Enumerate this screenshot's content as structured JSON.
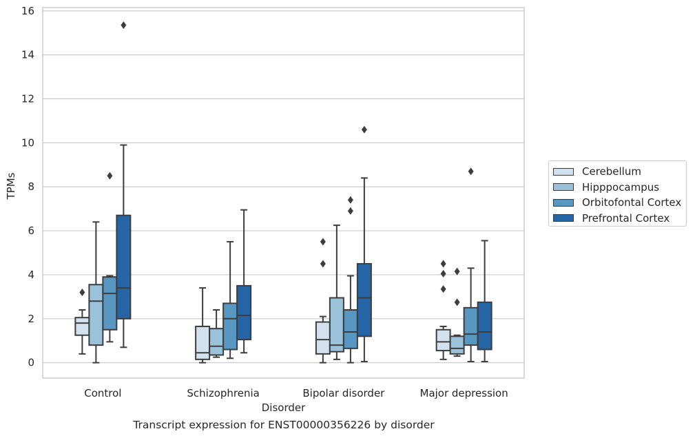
{
  "caption": "Transcript expression for ENST00000356226 by disorder",
  "chart_data": {
    "type": "box",
    "title": "",
    "xlabel": "Disorder",
    "ylabel": "TPMs",
    "ylim": [
      -0.7,
      16.15
    ],
    "yticks": [
      "0",
      "2",
      "4",
      "6",
      "8",
      "10",
      "12",
      "14",
      "16"
    ],
    "grid": "horizontal",
    "legend_position": "right",
    "categories": [
      "Control",
      "Schizophrenia",
      "Bipolar disorder",
      "Major depression"
    ],
    "series": [
      {
        "name": "Cerebellum",
        "color": "#d2e1ef",
        "boxes": [
          {
            "whislo": 0.4,
            "q1": 1.25,
            "med": 1.8,
            "q3": 2.05,
            "whishi": 2.4,
            "fliers": [
              3.2
            ]
          },
          {
            "whislo": 0.0,
            "q1": 0.15,
            "med": 0.45,
            "q3": 1.65,
            "whishi": 3.4,
            "fliers": []
          },
          {
            "whislo": 0.0,
            "q1": 0.4,
            "med": 1.05,
            "q3": 1.85,
            "whishi": 2.1,
            "fliers": [
              4.5,
              5.5
            ]
          },
          {
            "whislo": 0.15,
            "q1": 0.55,
            "med": 0.95,
            "q3": 1.5,
            "whishi": 1.65,
            "fliers": [
              3.35,
              4.05,
              4.5
            ]
          }
        ]
      },
      {
        "name": "Hipppocampus",
        "color": "#9ac2db",
        "boxes": [
          {
            "whislo": 0.0,
            "q1": 0.8,
            "med": 2.8,
            "q3": 3.55,
            "whishi": 6.4,
            "fliers": []
          },
          {
            "whislo": 0.25,
            "q1": 0.35,
            "med": 0.75,
            "q3": 1.55,
            "whishi": 2.4,
            "fliers": []
          },
          {
            "whislo": 0.15,
            "q1": 0.5,
            "med": 0.8,
            "q3": 2.95,
            "whishi": 6.25,
            "fliers": []
          },
          {
            "whislo": 0.3,
            "q1": 0.4,
            "med": 0.65,
            "q3": 1.2,
            "whishi": 1.25,
            "fliers": [
              2.75,
              4.15
            ]
          }
        ]
      },
      {
        "name": "Orbitofontal Cortex",
        "color": "#5797c2",
        "boxes": [
          {
            "whislo": 0.95,
            "q1": 1.5,
            "med": 3.15,
            "q3": 3.9,
            "whishi": 3.95,
            "fliers": [
              8.5
            ]
          },
          {
            "whislo": 0.2,
            "q1": 0.6,
            "med": 2.0,
            "q3": 2.7,
            "whishi": 5.5,
            "fliers": []
          },
          {
            "whislo": 0.0,
            "q1": 0.65,
            "med": 1.4,
            "q3": 2.4,
            "whishi": 3.95,
            "fliers": [
              6.9,
              7.4
            ]
          },
          {
            "whislo": 0.05,
            "q1": 0.8,
            "med": 1.3,
            "q3": 2.5,
            "whishi": 4.3,
            "fliers": [
              8.7
            ]
          }
        ]
      },
      {
        "name": "Prefrontal Cortex",
        "color": "#2565a6",
        "boxes": [
          {
            "whislo": 0.7,
            "q1": 2.0,
            "med": 3.4,
            "q3": 6.7,
            "whishi": 9.9,
            "fliers": [
              15.35
            ]
          },
          {
            "whislo": 0.45,
            "q1": 1.05,
            "med": 2.15,
            "q3": 3.5,
            "whishi": 6.95,
            "fliers": []
          },
          {
            "whislo": 0.05,
            "q1": 1.2,
            "med": 2.95,
            "q3": 4.5,
            "whishi": 8.4,
            "fliers": [
              10.6
            ]
          },
          {
            "whislo": 0.05,
            "q1": 0.6,
            "med": 1.4,
            "q3": 2.75,
            "whishi": 5.55,
            "fliers": []
          }
        ]
      }
    ]
  }
}
